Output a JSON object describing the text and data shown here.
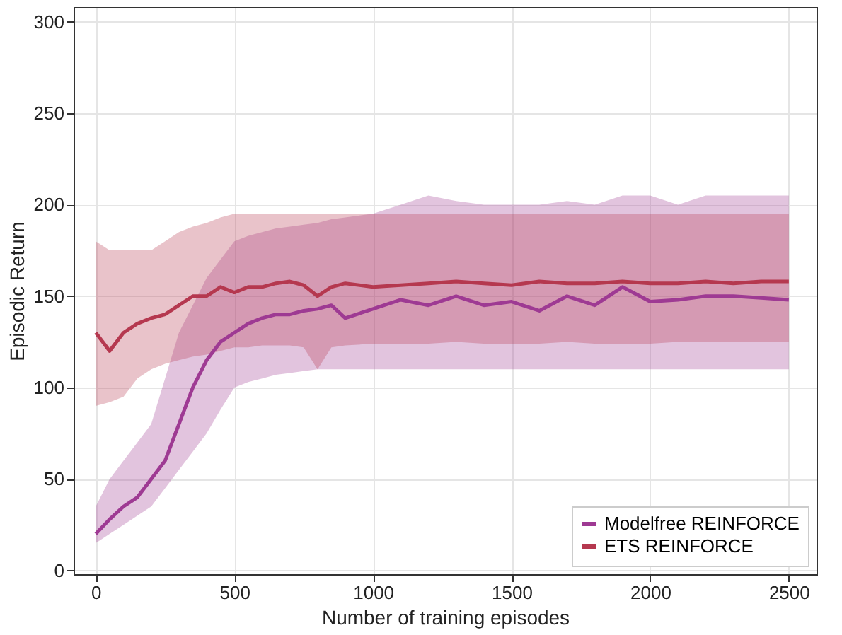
{
  "chart_data": {
    "type": "line",
    "xlabel": "Number of training episodes",
    "ylabel": "Episodic Return",
    "x": [
      0,
      50,
      100,
      150,
      200,
      250,
      300,
      350,
      400,
      450,
      500,
      550,
      600,
      650,
      700,
      750,
      800,
      850,
      900,
      1000,
      1100,
      1200,
      1300,
      1400,
      1500,
      1600,
      1700,
      1800,
      1900,
      2000,
      2100,
      2200,
      2300,
      2400,
      2500
    ],
    "series": [
      {
        "name": "Modelfree REINFORCE",
        "color": "#9e3a93",
        "values": [
          20,
          28,
          35,
          40,
          50,
          60,
          80,
          100,
          115,
          125,
          130,
          135,
          138,
          140,
          140,
          142,
          143,
          145,
          138,
          143,
          148,
          145,
          150,
          145,
          147,
          142,
          150,
          145,
          155,
          147,
          148,
          150,
          150,
          149,
          148
        ],
        "lower": [
          15,
          20,
          25,
          30,
          35,
          45,
          55,
          65,
          75,
          88,
          100,
          103,
          105,
          107,
          108,
          109,
          110,
          110,
          110,
          110,
          110,
          110,
          110,
          110,
          110,
          110,
          110,
          110,
          110,
          110,
          110,
          110,
          110,
          110,
          110
        ],
        "upper": [
          35,
          50,
          60,
          70,
          80,
          105,
          130,
          145,
          160,
          170,
          180,
          183,
          185,
          187,
          188,
          189,
          190,
          192,
          193,
          195,
          200,
          205,
          202,
          200,
          200,
          200,
          202,
          200,
          205,
          205,
          200,
          205,
          205,
          205,
          205
        ]
      },
      {
        "name": "ETS REINFORCE",
        "color": "#b5384f",
        "values": [
          130,
          120,
          130,
          135,
          138,
          140,
          145,
          150,
          150,
          155,
          152,
          155,
          155,
          157,
          158,
          156,
          150,
          155,
          157,
          155,
          156,
          157,
          158,
          157,
          156,
          158,
          157,
          157,
          158,
          157,
          157,
          158,
          157,
          158,
          158
        ],
        "lower": [
          90,
          92,
          95,
          105,
          110,
          113,
          115,
          117,
          118,
          120,
          122,
          122,
          123,
          123,
          123,
          122,
          110,
          122,
          123,
          124,
          124,
          124,
          125,
          124,
          124,
          124,
          125,
          124,
          124,
          124,
          125,
          125,
          125,
          125,
          125
        ],
        "upper": [
          180,
          175,
          175,
          175,
          175,
          180,
          185,
          188,
          190,
          193,
          195,
          195,
          195,
          195,
          195,
          195,
          195,
          195,
          195,
          195,
          195,
          195,
          195,
          195,
          195,
          195,
          195,
          195,
          195,
          195,
          195,
          195,
          195,
          195,
          195
        ]
      }
    ],
    "xlim": [
      -80,
      2600
    ],
    "ylim": [
      -2,
      308
    ],
    "xticks": [
      0,
      500,
      1000,
      1500,
      2000,
      2500
    ],
    "yticks": [
      0,
      50,
      100,
      150,
      200,
      250,
      300
    ],
    "grid": true,
    "legend": "bottom right",
    "line_style": "solid"
  }
}
